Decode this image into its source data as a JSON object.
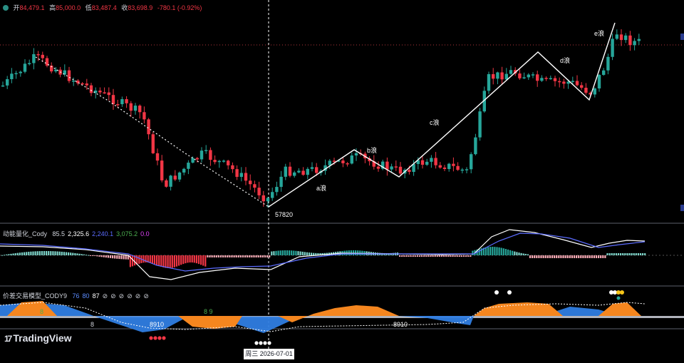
{
  "ohlc": {
    "open_label": "开",
    "open": "84,479.1",
    "high_label": "高",
    "high": "85,000.0",
    "low_label": "低",
    "low": "83,487.4",
    "close_label": "收",
    "close": "83,698.9",
    "change": "-780.1 (-0.92%)"
  },
  "indicator1": {
    "name": "动能量化_Cody",
    "values": [
      "85.5",
      "2,325.6",
      "2,240.1",
      "3,075.2",
      "0.0"
    ],
    "colors": [
      "#d1d4dc",
      "#ffffff",
      "#5b6cff",
      "#4caf50",
      "#e040fb"
    ]
  },
  "indicator2": {
    "name": "价差交易模型_CODY9",
    "values": [
      "76",
      "80",
      "87",
      "⊘",
      "⊘",
      "⊘",
      "⊘",
      "⊘",
      "⊘"
    ],
    "colors": [
      "#5b8cff",
      "#5b8cff",
      "#ffffff",
      "#d1d4dc",
      "#d1d4dc",
      "#d1d4dc",
      "#d1d4dc",
      "#d1d4dc",
      "#d1d4dc"
    ]
  },
  "date_label": "周三 2026-07-01",
  "logo_text": "TradingView",
  "logo_mark": "17",
  "colors": {
    "up": "#26a69a",
    "down": "#f23645",
    "wave": "#ffffff",
    "blue_area": "#2f7de1",
    "orange_area": "#f5861f"
  },
  "chart_data": [
    {
      "type": "candlestick",
      "annotations": [
        {
          "label": "57820",
          "kind": "low-price"
        },
        {
          "label": "a浪",
          "kind": "wave"
        },
        {
          "label": "b浪",
          "kind": "wave"
        },
        {
          "label": "c浪",
          "kind": "wave"
        },
        {
          "label": "d浪",
          "kind": "wave"
        },
        {
          "label": "e浪",
          "kind": "wave"
        }
      ],
      "wave_path": [
        [
          0,
          57820
        ],
        [
          13,
          69000
        ],
        [
          18,
          64800
        ],
        [
          37,
          83000
        ],
        [
          44,
          77500
        ],
        [
          49,
          87800
        ]
      ]
    },
    {
      "type": "bar",
      "name_ref": "indicator1",
      "note": "momentum histogram with two signal lines"
    },
    {
      "type": "area",
      "name_ref": "indicator2",
      "annotations": [
        {
          "label": "8"
        },
        {
          "label": "8"
        },
        {
          "label": "8910"
        },
        {
          "label": "8 9"
        },
        {
          "label": "8910"
        }
      ]
    }
  ]
}
